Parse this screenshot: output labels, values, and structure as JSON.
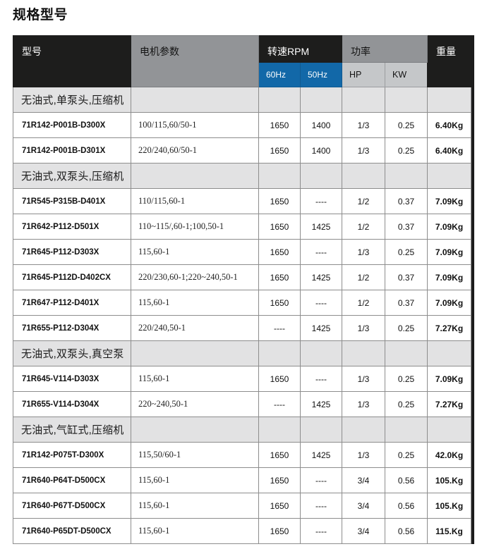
{
  "page": {
    "title": "规格型号"
  },
  "colors": {
    "header_dark": "#1d1d1c",
    "header_gray": "#929497",
    "header_blue": "#1268a8",
    "subheader_lightgray": "#c5c7c9",
    "section_row_bg": "#e2e2e3",
    "grid_border": "#8d8d8d"
  },
  "table": {
    "header": {
      "model": "型号",
      "motor": "电机参数",
      "rpm": "转速RPM",
      "power": "功率",
      "weight": "重量",
      "hz60": "60Hz",
      "hz50": "50Hz",
      "hp": "HP",
      "kw": "KW"
    },
    "rows": [
      {
        "type": "section",
        "label": "无油式,单泵头,压缩机"
      },
      {
        "type": "data",
        "model": "71R142-P001B-D300X",
        "motor": "100/115,60/50-1",
        "rpm60": "1650",
        "rpm50": "1400",
        "hp": "1/3",
        "kw": "0.25",
        "weight": "6.40Kg"
      },
      {
        "type": "data",
        "model": "71R142-P001B-D301X",
        "motor": "220/240,60/50-1",
        "rpm60": "1650",
        "rpm50": "1400",
        "hp": "1/3",
        "kw": "0.25",
        "weight": "6.40Kg"
      },
      {
        "type": "section",
        "label": "无油式,双泵头,压缩机"
      },
      {
        "type": "data",
        "model": "71R545-P315B-D401X",
        "motor": "110/115,60-1",
        "rpm60": "1650",
        "rpm50": "----",
        "hp": "1/2",
        "kw": "0.37",
        "weight": "7.09Kg"
      },
      {
        "type": "data",
        "model": "71R642-P112-D501X",
        "motor": "110~115/,60-1;100,50-1",
        "rpm60": "1650",
        "rpm50": "1425",
        "hp": "1/2",
        "kw": "0.37",
        "weight": "7.09Kg"
      },
      {
        "type": "data",
        "model": "71R645-P112-D303X",
        "motor": "115,60-1",
        "rpm60": "1650",
        "rpm50": "----",
        "hp": "1/3",
        "kw": "0.25",
        "weight": "7.09Kg"
      },
      {
        "type": "data",
        "model": "71R645-P112D-D402CX",
        "motor": "220/230,60-1;220~240,50-1",
        "rpm60": "1650",
        "rpm50": "1425",
        "hp": "1/2",
        "kw": "0.37",
        "weight": "7.09Kg"
      },
      {
        "type": "data",
        "model": "71R647-P112-D401X",
        "motor": "115,60-1",
        "rpm60": "1650",
        "rpm50": "----",
        "hp": "1/2",
        "kw": "0.37",
        "weight": "7.09Kg"
      },
      {
        "type": "data",
        "model": "71R655-P112-D304X",
        "motor": "220/240,50-1",
        "rpm60": "----",
        "rpm50": "1425",
        "hp": "1/3",
        "kw": "0.25",
        "weight": "7.27Kg"
      },
      {
        "type": "section",
        "label": "无油式,双泵头,真空泵"
      },
      {
        "type": "data",
        "model": "71R645-V114-D303X",
        "motor": "115,60-1",
        "rpm60": "1650",
        "rpm50": "----",
        "hp": "1/3",
        "kw": "0.25",
        "weight": "7.09Kg"
      },
      {
        "type": "data",
        "model": "71R655-V114-D304X",
        "motor": "220~240,50-1",
        "rpm60": "----",
        "rpm50": "1425",
        "hp": "1/3",
        "kw": "0.25",
        "weight": "7.27Kg"
      },
      {
        "type": "section",
        "label": "无油式,气缸式,压缩机"
      },
      {
        "type": "data",
        "model": "71R142-P075T-D300X",
        "motor": "115,50/60-1",
        "rpm60": "1650",
        "rpm50": "1425",
        "hp": "1/3",
        "kw": "0.25",
        "weight": "42.0Kg"
      },
      {
        "type": "data",
        "model": "71R640-P64T-D500CX",
        "motor": "115,60-1",
        "rpm60": "1650",
        "rpm50": "----",
        "hp": "3/4",
        "kw": "0.56",
        "weight": "105.Kg"
      },
      {
        "type": "data",
        "model": "71R640-P67T-D500CX",
        "motor": "115,60-1",
        "rpm60": "1650",
        "rpm50": "----",
        "hp": "3/4",
        "kw": "0.56",
        "weight": "105.Kg"
      },
      {
        "type": "data",
        "model": "71R640-P65DT-D500CX",
        "motor": "115,60-1",
        "rpm60": "1650",
        "rpm50": "----",
        "hp": "3/4",
        "kw": "0.56",
        "weight": "115.Kg"
      }
    ]
  }
}
